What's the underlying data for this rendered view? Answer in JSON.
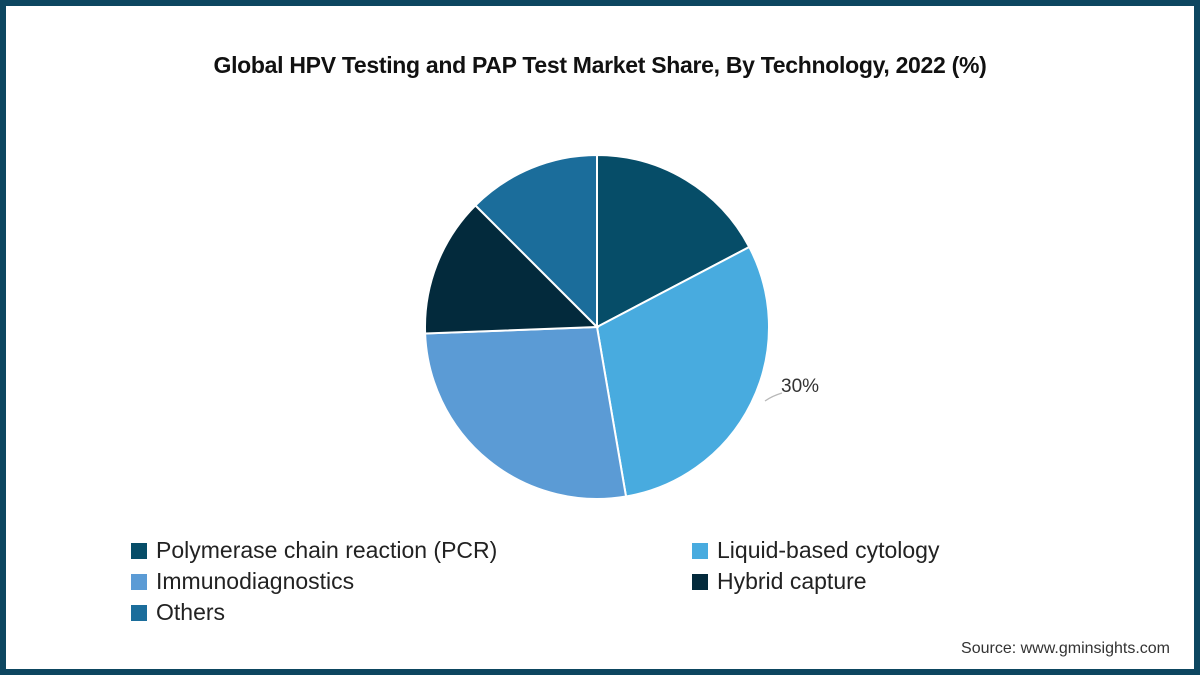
{
  "chart_data": {
    "type": "pie",
    "title": "Global HPV Testing and PAP Test Market Share, By Technology, 2022 (%)",
    "categories": [
      "Polymerase chain reaction (PCR)",
      "Liquid-based cytology",
      "Immunodiagnostics",
      "Hybrid capture",
      "Others"
    ],
    "values": [
      17.3,
      30,
      27.1,
      13.1,
      12.5
    ],
    "colors": [
      "#064d68",
      "#48abdf",
      "#5b9bd5",
      "#032a3c",
      "#1b6d9b"
    ],
    "data_labels": [
      {
        "category": "Liquid-based cytology",
        "text": "30%"
      }
    ],
    "legend_position": "bottom",
    "start_angle_deg": 0,
    "direction": "clockwise"
  },
  "title": "Global HPV Testing and PAP Test Market Share, By Technology, 2022 (%)",
  "label_30": "30%",
  "legend": {
    "items": [
      {
        "label": "Polymerase chain reaction (PCR)",
        "color": "#064d68"
      },
      {
        "label": "Liquid-based cytology",
        "color": "#48abdf"
      },
      {
        "label": "Immunodiagnostics",
        "color": "#5b9bd5"
      },
      {
        "label": "Hybrid capture",
        "color": "#032a3c"
      },
      {
        "label": "Others",
        "color": "#1b6d9b"
      }
    ]
  },
  "source": "Source: www.gminsights.com"
}
